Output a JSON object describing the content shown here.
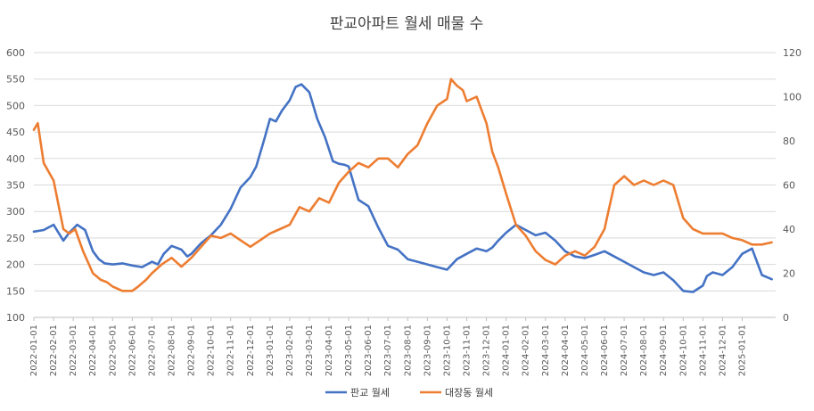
{
  "chart_data": {
    "type": "line",
    "title": "판교아파트 월세 매물 수",
    "xlabel": "",
    "ylabel": "",
    "y_left_ticks": [
      "100",
      "150",
      "200",
      "250",
      "300",
      "350",
      "400",
      "450",
      "500",
      "550",
      "600"
    ],
    "y_right_ticks": [
      "0",
      "20",
      "40",
      "60",
      "80",
      "100",
      "120"
    ],
    "ylim_left": [
      100,
      600
    ],
    "ylim_right": [
      0,
      120
    ],
    "x_labels": [
      "2022-01-01",
      "2022-02-01",
      "2022-03-01",
      "2022-04-01",
      "2022-05-01",
      "2022-06-01",
      "2022-07-01",
      "2022-08-01",
      "2022-09-01",
      "2022-10-01",
      "2022-11-01",
      "2022-12-01",
      "2023-01-01",
      "2023-02-01",
      "2023-03-01",
      "2023-04-01",
      "2023-05-01",
      "2023-06-01",
      "2023-07-01",
      "2023-08-01",
      "2023-09-01",
      "2023-10-01",
      "2023-11-01",
      "2023-12-01",
      "2024-01-01",
      "2024-02-01",
      "2024-03-01",
      "2024-04-01",
      "2024-05-01",
      "2024-06-01",
      "2024-07-01",
      "2024-08-01",
      "2024-09-01",
      "2024-10-01",
      "2024-11-01",
      "2024-12-01",
      "2025-01-01"
    ],
    "x_domain_months": [
      0,
      37.7
    ],
    "grid": true,
    "legend_position": "bottom",
    "series": [
      {
        "name": "판교 월세",
        "axis": "left",
        "color": "#4472C4",
        "x": [
          0,
          0.5,
          1,
          1.5,
          1.8,
          2.2,
          2.6,
          3,
          3.3,
          3.6,
          4,
          4.5,
          5,
          5.5,
          6,
          6.3,
          6.6,
          7,
          7.5,
          7.8,
          8,
          8.5,
          9,
          9.5,
          10,
          10.5,
          11,
          11.3,
          11.7,
          12,
          12.3,
          12.6,
          13,
          13.3,
          13.6,
          14,
          14.4,
          14.8,
          15.2,
          15.5,
          15.8,
          16,
          16.5,
          17,
          17.5,
          18,
          18.5,
          19,
          19.5,
          20,
          20.5,
          21,
          21.5,
          22,
          22.5,
          23,
          23.3,
          23.6,
          24,
          24.5,
          25,
          25.5,
          26,
          26.5,
          27,
          27.5,
          28,
          28.5,
          29,
          29.5,
          30,
          30.5,
          31,
          31.5,
          32,
          32.5,
          33,
          33.5,
          34,
          34.2,
          34.5,
          35,
          35.5,
          36,
          36.5,
          37,
          37.5
        ],
        "values": [
          262,
          265,
          275,
          245,
          260,
          275,
          265,
          225,
          210,
          202,
          200,
          202,
          198,
          195,
          205,
          200,
          220,
          235,
          228,
          215,
          220,
          240,
          255,
          275,
          305,
          345,
          365,
          385,
          435,
          475,
          470,
          490,
          510,
          535,
          540,
          525,
          475,
          440,
          395,
          390,
          388,
          385,
          322,
          310,
          270,
          235,
          228,
          210,
          205,
          200,
          195,
          190,
          210,
          220,
          230,
          225,
          232,
          245,
          260,
          275,
          265,
          255,
          260,
          245,
          225,
          215,
          212,
          218,
          225,
          215,
          205,
          195,
          185,
          180,
          185,
          170,
          150,
          148,
          160,
          178,
          185,
          180,
          195,
          220,
          230,
          180,
          172
        ]
      },
      {
        "name": "대장동 월세",
        "axis": "right",
        "color": "#ED7D31",
        "x": [
          0,
          0.2,
          0.5,
          1,
          1.5,
          1.8,
          2.1,
          2.5,
          3,
          3.4,
          3.7,
          4,
          4.5,
          5,
          5.3,
          5.7,
          6,
          6.5,
          7,
          7.5,
          8,
          8.5,
          9,
          9.5,
          10,
          10.5,
          11,
          11.5,
          12,
          12.5,
          13,
          13.5,
          14,
          14.5,
          15,
          15.5,
          16,
          16.5,
          17,
          17.5,
          18,
          18.5,
          19,
          19.5,
          20,
          20.5,
          21,
          21.2,
          21.5,
          21.8,
          22,
          22.5,
          23,
          23.3,
          23.6,
          24,
          24.5,
          25,
          25.5,
          26,
          26.5,
          27,
          27.5,
          28,
          28.5,
          29,
          29.5,
          30,
          30.5,
          31,
          31.5,
          32,
          32.5,
          33,
          33.5,
          34,
          34.5,
          35,
          35.5,
          36,
          36.5,
          37,
          37.5
        ],
        "values": [
          85,
          88,
          70,
          62,
          40,
          38,
          40,
          30,
          20,
          17,
          16,
          14,
          12,
          12,
          14,
          17,
          20,
          24,
          27,
          23,
          27,
          32,
          37,
          36,
          38,
          35,
          32,
          35,
          38,
          40,
          42,
          50,
          48,
          54,
          52,
          61,
          66,
          70,
          68,
          72,
          72,
          68,
          74,
          78,
          88,
          96,
          99,
          108,
          105,
          103,
          98,
          100,
          88,
          75,
          68,
          56,
          42,
          37,
          30,
          26,
          24,
          28,
          30,
          28,
          32,
          40,
          60,
          64,
          60,
          62,
          60,
          62,
          60,
          45,
          40,
          38,
          38,
          38,
          36,
          35,
          33,
          33,
          34
        ]
      }
    ]
  }
}
